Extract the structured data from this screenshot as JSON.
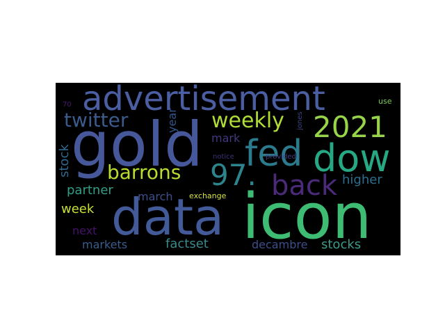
{
  "word_cloud": {
    "background": "#000000",
    "words": [
      {
        "text": "advertisement",
        "color": "#4a5ea1"
      },
      {
        "text": "gold",
        "color": "#46589a"
      },
      {
        "text": "icon",
        "color": "#3fbc73"
      },
      {
        "text": "data",
        "color": "#435a98"
      },
      {
        "text": "fed",
        "color": "#2b7b8d"
      },
      {
        "text": "dow",
        "color": "#27a884"
      },
      {
        "text": "2021",
        "color": "#97d449"
      },
      {
        "text": "97.",
        "color": "#2d848c"
      },
      {
        "text": "back",
        "color": "#4b2a7a"
      },
      {
        "text": "barrons",
        "color": "#b8dd2f"
      },
      {
        "text": "weekly",
        "color": "#b0dc36"
      },
      {
        "text": "twitter",
        "color": "#3a5b8c"
      },
      {
        "text": "higher",
        "color": "#2b6f8e"
      },
      {
        "text": "partner",
        "color": "#2f9f88"
      },
      {
        "text": "week",
        "color": "#c8e034"
      },
      {
        "text": "march",
        "color": "#3d4f8a"
      },
      {
        "text": "mark",
        "color": "#45377f"
      },
      {
        "text": "year",
        "color": "#33568c"
      },
      {
        "text": "stock",
        "color": "#31688e"
      },
      {
        "text": "next",
        "color": "#44126b"
      },
      {
        "text": "markets",
        "color": "#3a5d8d"
      },
      {
        "text": "factset",
        "color": "#3a8a8c"
      },
      {
        "text": "decambre",
        "color": "#3b4f8a"
      },
      {
        "text": "stocks",
        "color": "#3e9a8a"
      },
      {
        "text": "exchange",
        "color": "#d6e24a"
      },
      {
        "text": "jones",
        "color": "#3d4388"
      },
      {
        "text": "notice",
        "color": "#3f2f78"
      },
      {
        "text": "provided",
        "color": "#443c82"
      },
      {
        "text": "use",
        "color": "#7fcf55"
      },
      {
        "text": "70",
        "color": "#4a1870"
      }
    ]
  }
}
